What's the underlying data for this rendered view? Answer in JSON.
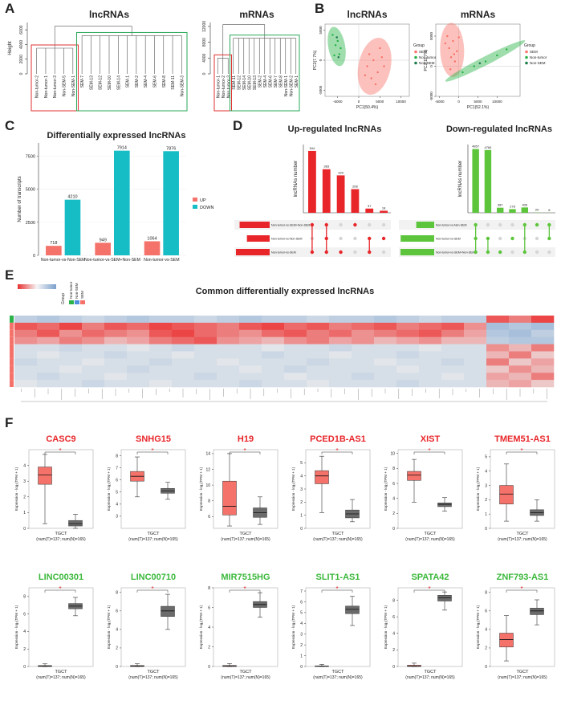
{
  "panel_labels": [
    "A",
    "B",
    "C",
    "D",
    "E",
    "F"
  ],
  "chart_data": [
    {
      "type": "dendrogram",
      "title": "lncRNAs",
      "ylabel": "Height",
      "ylim": [
        0,
        7000
      ],
      "yticks": [
        0,
        2000,
        4000,
        6000
      ],
      "top": 6500,
      "clusters": [
        {
          "color": "#e03030",
          "height": 3500,
          "leaves": [
            "Non-tumor-2",
            "Non-tumor-1",
            "Non-tumor-3",
            "Non-SEM-5",
            "Non-SEM-1"
          ]
        },
        {
          "color": "#2aa85a",
          "height": 5200,
          "leaves": [
            "SEM-7",
            "SEM-13",
            "SEM-12",
            "SEM-10",
            "SEM-14",
            "SEM-1",
            "SEM-2",
            "SEM-4",
            "SEM-6",
            "SEM-8",
            "SEM-11",
            "Non-SEM-3"
          ]
        }
      ]
    },
    {
      "type": "dendrogram",
      "title": "mRNAs",
      "ylim": [
        0,
        13000
      ],
      "yticks": [
        0,
        4000,
        8000,
        12000
      ],
      "top": 12500,
      "clusters": [
        {
          "color": "#e03030",
          "height": 4000,
          "leaves": [
            "Non-tumor-1",
            "Non-tumor-2",
            "Non-tumor-3"
          ]
        },
        {
          "color": "#2aa85a",
          "height": 9000,
          "leaves": [
            "SEM-11",
            "SEM-12",
            "SEM-14",
            "SEM-10",
            "SEM-13",
            "SEM-2",
            "SEM-4",
            "SEM-6",
            "SEM-7",
            "SEM-8",
            "Non-SEM-1",
            "Non-SEM-2",
            "SEM-1"
          ]
        }
      ]
    },
    {
      "type": "pca",
      "title": "lncRNAs",
      "xlabel": "PC1(50.4%)",
      "ylabel": "PC2(7.7%)",
      "legend_title": "Group",
      "xlim": [
        -8000,
        12000
      ],
      "xticks": [
        -5000,
        0,
        5000,
        10000
      ],
      "ylim": [
        -6000,
        6000
      ],
      "yticks": [
        -5000,
        0,
        5000
      ],
      "series": [
        {
          "name": "SEM",
          "color": "#f8766d",
          "ellipse": true,
          "x": [
            2000,
            3500,
            4500,
            3000,
            5500,
            2500,
            6000,
            4000,
            1500,
            5000
          ],
          "values": [
            -1000,
            0,
            -2000,
            -3000,
            500,
            1000,
            -1000,
            -4000,
            -2500,
            2000
          ]
        },
        {
          "name": "Non-tumor",
          "color": "#2bb34a",
          "ellipse": true,
          "x": [
            -5500,
            -6200,
            -4600,
            -5000,
            -5800,
            -4300
          ],
          "values": [
            2500,
            4200,
            1000,
            3200,
            800,
            2000
          ]
        },
        {
          "name": "Non-SEM",
          "color": "#1f7f4c",
          "ellipse": false,
          "x": [
            -5200,
            -4800
          ],
          "values": [
            3800,
            500
          ]
        }
      ]
    },
    {
      "type": "pca",
      "title": "mRNAs",
      "xlabel": "PC1(52.1%)",
      "ylabel": "PC2(11.7%)",
      "legend_title": "Group",
      "xlim": [
        -6000,
        16000
      ],
      "xticks": [
        -5000,
        0,
        5000,
        10000
      ],
      "ylim": [
        -5000,
        7000
      ],
      "yticks": [
        -5000,
        0,
        5000
      ],
      "series": [
        {
          "name": "SEM",
          "color": "#f8766d",
          "ellipse": true,
          "x": [
            -3000,
            -1500,
            -2500,
            -500,
            -2000,
            -1000,
            -3500,
            0,
            -2200,
            -1200
          ],
          "values": [
            5000,
            4200,
            3000,
            2500,
            1500,
            800,
            3800,
            4800,
            -500,
            2000
          ]
        },
        {
          "name": "Non-tumor",
          "color": "#2bb34a",
          "ellipse": true,
          "x": [
            1000,
            4000,
            7000,
            10000,
            12500
          ],
          "values": [
            -1000,
            0,
            800,
            1800,
            2800
          ]
        },
        {
          "name": "Non-SEM",
          "color": "#1f7f4c",
          "ellipse": false,
          "x": [
            5500
          ],
          "values": [
            500
          ]
        }
      ]
    },
    {
      "type": "bar",
      "title": "Differentially expressed lncRNAs",
      "ylabel": "Number of transcripts",
      "categories": [
        "Non-tumor-vs-Non-SEM",
        "Non-tumor-vs-SEM+Non-SEM",
        "Non-tumor-vs-SEM"
      ],
      "ylim": [
        0,
        8500
      ],
      "yticks": [
        0,
        2500,
        5000,
        7500
      ],
      "series": [
        {
          "name": "UP",
          "color": "#f4726a",
          "values": [
            718,
            949,
            1064
          ]
        },
        {
          "name": "DOWN",
          "color": "#16bdc4",
          "values": [
            4210,
            7914,
            7876
          ]
        }
      ]
    },
    {
      "type": "upset",
      "title": "Up-regulated lncRNAs",
      "ylabel": "lncRNAs number",
      "color": "#e8262a",
      "ylim": [
        0,
        600
      ],
      "sets": [
        "Non-tumor-vs-SEM+Non-SEM",
        "Non-tumor-vs-Non-SEM",
        "Non-tumor-vs-SEM"
      ],
      "set_sizes": [
        949,
        718,
        1064
      ],
      "values": [
        544,
        383,
        329,
        208,
        37,
        18
      ],
      "members": [
        [
          0,
          2
        ],
        [
          0,
          1,
          2
        ],
        [
          2
        ],
        [
          0
        ],
        [
          1,
          2
        ],
        [
          1
        ]
      ]
    },
    {
      "type": "upset",
      "title": "Down-regulated lncRNAs",
      "ylabel": "lncRNAs number",
      "color": "#5cc53c",
      "ylim": [
        0,
        5200
      ],
      "sets": [
        "Non-tumor-vs-Non-SEM",
        "Non-tumor-vs-SEM",
        "Non-tumor-vs-SEM+Non-SEM"
      ],
      "set_sizes": [
        4210,
        7876,
        7914
      ],
      "values": [
        4857,
        4784,
        387,
        278,
        406,
        20,
        8
      ],
      "members": [
        [
          0,
          1,
          2
        ],
        [
          1,
          2
        ],
        [
          2
        ],
        [
          1
        ],
        [
          0,
          2
        ],
        [
          0
        ],
        [
          0,
          1
        ]
      ]
    },
    {
      "type": "heatmap",
      "title": "Common differentially expressed lncRNAs",
      "legend_title": "Group",
      "groups": [
        {
          "name": "Non-tumor",
          "color": "#2bb34a"
        },
        {
          "name": "Non-SEM",
          "color": "#4f8fe0"
        },
        {
          "name": "SEM",
          "color": "#f4726a"
        }
      ],
      "row_groups": [
        0,
        2,
        2,
        2,
        2,
        2,
        2,
        2,
        2,
        2
      ],
      "values": [
        [
          -0.4,
          -0.5,
          -0.4,
          -0.3,
          -0.4,
          -0.5,
          -0.4,
          -0.4,
          -0.3,
          -0.4,
          -0.5,
          -0.4,
          -0.4,
          -0.3,
          -0.4,
          -0.4,
          -0.5,
          -0.4,
          -0.3,
          -0.4,
          -0.4,
          0.8,
          0.6,
          0.9
        ],
        [
          0.8,
          0.7,
          0.9,
          0.6,
          0.8,
          0.7,
          0.9,
          0.8,
          0.7,
          0.6,
          0.8,
          0.9,
          0.7,
          0.8,
          0.6,
          0.7,
          0.8,
          0.6,
          0.7,
          0.8,
          0.5,
          -0.6,
          -0.5,
          -0.6
        ],
        [
          0.6,
          0.8,
          0.5,
          0.7,
          0.6,
          0.5,
          0.8,
          0.9,
          0.7,
          0.6,
          0.5,
          0.7,
          0.8,
          0.6,
          0.7,
          0.5,
          0.6,
          0.7,
          0.8,
          0.6,
          0.4,
          -0.5,
          -0.6,
          -0.4
        ],
        [
          0.5,
          0.4,
          0.6,
          0.5,
          0.3,
          0.4,
          0.6,
          0.7,
          0.8,
          0.5,
          0.4,
          0.3,
          0.5,
          0.6,
          0.4,
          0.5,
          0.3,
          0.4,
          0.5,
          0.3,
          0.3,
          -0.4,
          -0.5,
          -0.5
        ],
        [
          -0.2,
          -0.2,
          -0.3,
          -0.2,
          -0.2,
          -0.1,
          -0.2,
          -0.3,
          -0.2,
          -0.2,
          -0.2,
          -0.1,
          -0.2,
          -0.2,
          -0.3,
          -0.2,
          -0.2,
          -0.2,
          -0.1,
          -0.2,
          -0.2,
          0.5,
          0.3,
          0.6
        ],
        [
          -0.2,
          -0.1,
          -0.2,
          -0.2,
          -0.3,
          -0.2,
          -0.2,
          -0.1,
          -0.2,
          -0.2,
          -0.2,
          -0.3,
          -0.2,
          -0.2,
          -0.1,
          -0.2,
          -0.2,
          -0.3,
          -0.2,
          -0.2,
          -0.2,
          0.3,
          0.6,
          0.2
        ],
        [
          -0.3,
          -0.2,
          -0.2,
          -0.1,
          -0.2,
          -0.2,
          -0.3,
          -0.2,
          -0.2,
          -0.1,
          -0.2,
          -0.2,
          -0.2,
          -0.3,
          -0.2,
          -0.2,
          -0.1,
          -0.2,
          -0.2,
          -0.3,
          -0.2,
          0.6,
          0.2,
          0.4
        ],
        [
          -0.2,
          -0.2,
          -0.1,
          -0.2,
          -0.2,
          -0.3,
          -0.2,
          -0.2,
          -0.2,
          -0.2,
          -0.1,
          -0.2,
          -0.3,
          -0.2,
          -0.2,
          -0.2,
          -0.2,
          -0.1,
          -0.2,
          -0.2,
          -0.2,
          0.2,
          0.5,
          0.3
        ],
        [
          -0.2,
          -0.3,
          -0.2,
          -0.2,
          -0.1,
          -0.2,
          -0.2,
          -0.2,
          -0.3,
          -0.2,
          -0.2,
          -0.2,
          -0.1,
          -0.2,
          -0.2,
          -0.3,
          -0.2,
          -0.2,
          -0.2,
          -0.1,
          -0.2,
          0.4,
          0.3,
          0.6
        ],
        [
          -0.1,
          -0.2,
          -0.2,
          -0.3,
          -0.2,
          -0.2,
          -0.1,
          -0.2,
          -0.2,
          -0.2,
          -0.3,
          -0.2,
          -0.2,
          -0.1,
          -0.2,
          -0.2,
          -0.2,
          -0.3,
          -0.2,
          -0.2,
          -0.2,
          0.3,
          0.4,
          0.2
        ]
      ]
    },
    {
      "type": "box",
      "title": "CASC9",
      "title_color": "#e8262a",
      "ylim": [
        0,
        5
      ],
      "yticks": [
        0,
        1,
        2,
        3,
        4
      ],
      "boxes": [
        [
          0.3,
          2.8,
          3.4,
          3.9,
          4.7
        ],
        [
          0,
          0.15,
          0.3,
          0.5,
          0.9
        ]
      ],
      "sig": "*",
      "xlabel": "TGCT",
      "note": "(num(T)=137; num(N)=165)",
      "ylabel": "Expression - log₂(TPM + 1)"
    },
    {
      "type": "box",
      "title": "SNHG15",
      "title_color": "#e8262a",
      "ylim": [
        2,
        8.5
      ],
      "yticks": [
        3,
        4,
        5,
        6,
        7,
        8
      ],
      "boxes": [
        [
          4.6,
          5.9,
          6.3,
          6.7,
          7.9
        ],
        [
          4.4,
          4.9,
          5.1,
          5.3,
          5.8
        ]
      ],
      "sig": "*",
      "xlabel": "TGCT",
      "note": "(num(T)=137; num(N)=165)",
      "ylabel": "Expression - log₂(TPM + 1)"
    },
    {
      "type": "box",
      "title": "H19",
      "title_color": "#e8262a",
      "ylim": [
        4.5,
        14.5
      ],
      "yticks": [
        6,
        8,
        10,
        12,
        14
      ],
      "boxes": [
        [
          4.8,
          6.2,
          7.3,
          10.5,
          14
        ],
        [
          5,
          5.9,
          6.5,
          7.1,
          8.5
        ]
      ],
      "sig": "*",
      "xlabel": "TGCT",
      "note": "(num(T)=137; num(N)=165)",
      "ylabel": "Expression - log₂(TPM + 1)"
    },
    {
      "type": "box",
      "title": "PCED1B-AS1",
      "title_color": "#e8262a",
      "ylim": [
        0,
        6
      ],
      "yticks": [
        0,
        1,
        2,
        3,
        4,
        5
      ],
      "boxes": [
        [
          1.2,
          3.4,
          4.0,
          4.4,
          5.5
        ],
        [
          0.5,
          0.8,
          1.1,
          1.4,
          2.2
        ]
      ],
      "sig": "*",
      "xlabel": "TGCT",
      "note": "(num(T)=137; num(N)=165)",
      "ylabel": "Expression - log₂(TPM + 1)"
    },
    {
      "type": "box",
      "title": "XIST",
      "title_color": "#e8262a",
      "ylim": [
        0,
        10.5
      ],
      "yticks": [
        0,
        2,
        4,
        6,
        8,
        10
      ],
      "boxes": [
        [
          3.5,
          6.4,
          7.1,
          7.6,
          9.2
        ],
        [
          2.3,
          2.9,
          3.2,
          3.4,
          4.1
        ]
      ],
      "sig": "*",
      "xlabel": "TGCT",
      "note": "(num(T)=137; num(N)=165)",
      "ylabel": "Expression - log₂(TPM + 1)"
    },
    {
      "type": "box",
      "title": "TMEM51-AS1",
      "title_color": "#e8262a",
      "ylim": [
        0,
        5.5
      ],
      "yticks": [
        0,
        1,
        2,
        3,
        4,
        5
      ],
      "boxes": [
        [
          0.5,
          1.7,
          2.4,
          3.0,
          4.5
        ],
        [
          0.5,
          0.9,
          1.1,
          1.3,
          2
        ]
      ],
      "sig": "*",
      "xlabel": "TGCT",
      "note": "(num(T)=137; num(N)=165)",
      "ylabel": "Expression - log₂(TPM + 1)"
    },
    {
      "type": "box",
      "title": "LINC00301",
      "title_color": "#3cb83c",
      "ylim": [
        0,
        9
      ],
      "yticks": [
        0,
        2,
        4,
        6,
        8
      ],
      "boxes": [
        [
          0,
          0,
          0.05,
          0.1,
          0.3
        ],
        [
          5.8,
          6.6,
          6.9,
          7.2,
          7.9
        ]
      ],
      "sig": "*",
      "xlabel": "TGCT",
      "note": "(num(T)=137; num(N)=165)",
      "ylabel": "Expression - log₂(TPM + 1)"
    },
    {
      "type": "box",
      "title": "LINC00710",
      "title_color": "#3cb83c",
      "ylim": [
        0,
        8.5
      ],
      "yticks": [
        0,
        2,
        4,
        6,
        8
      ],
      "boxes": [
        [
          0,
          0,
          0.05,
          0.1,
          0.3
        ],
        [
          4,
          5.4,
          6,
          6.5,
          7.8
        ]
      ],
      "sig": "*",
      "xlabel": "TGCT",
      "note": "(num(T)=137; num(N)=165)",
      "ylabel": "Expression - log₂(TPM + 1)"
    },
    {
      "type": "box",
      "title": "MIR7515HG",
      "title_color": "#3cb83c",
      "ylim": [
        0,
        8
      ],
      "yticks": [
        0,
        2,
        4,
        6,
        8
      ],
      "boxes": [
        [
          0,
          0,
          0.05,
          0.1,
          0.3
        ],
        [
          5,
          6,
          6.3,
          6.6,
          7.5
        ]
      ],
      "sig": "*",
      "xlabel": "TGCT",
      "note": "(num(T)=137; num(N)=165)",
      "ylabel": "Expression - log₂(TPM + 1)"
    },
    {
      "type": "box",
      "title": "SLIT1-AS1",
      "title_color": "#3cb83c",
      "ylim": [
        0,
        7.3
      ],
      "yticks": [
        0,
        1,
        2,
        3,
        4,
        5,
        6,
        7
      ],
      "boxes": [
        [
          0,
          0,
          0.03,
          0.05,
          0.2
        ],
        [
          3.8,
          4.9,
          5.3,
          5.6,
          6.5
        ]
      ],
      "sig": "*",
      "xlabel": "TGCT",
      "note": "(num(T)=137; num(N)=165)",
      "ylabel": "Expression - log₂(TPM + 1)"
    },
    {
      "type": "box",
      "title": "SPATA42",
      "title_color": "#3cb83c",
      "ylim": [
        0,
        9.5
      ],
      "yticks": [
        0,
        2,
        4,
        6,
        8
      ],
      "boxes": [
        [
          0,
          0,
          0.05,
          0.15,
          0.4
        ],
        [
          6.8,
          7.9,
          8.3,
          8.6,
          9.0
        ]
      ],
      "sig": "*",
      "xlabel": "TGCT",
      "note": "(num(T)=137; num(N)=165)",
      "ylabel": "Expression - log₂(TPM + 1)"
    },
    {
      "type": "box",
      "title": "ZNF793-AS1",
      "title_color": "#3cb83c",
      "ylim": [
        0,
        8.5
      ],
      "yticks": [
        0,
        2,
        4,
        6,
        8
      ],
      "boxes": [
        [
          0.6,
          2.1,
          2.9,
          3.6,
          5.5
        ],
        [
          4.5,
          5.6,
          6,
          6.3,
          7.2
        ]
      ],
      "sig": "*",
      "xlabel": "TGCT",
      "note": "(num(T)=137; num(N)=165)",
      "ylabel": "Expression - log₂(TPM + 1)"
    }
  ]
}
